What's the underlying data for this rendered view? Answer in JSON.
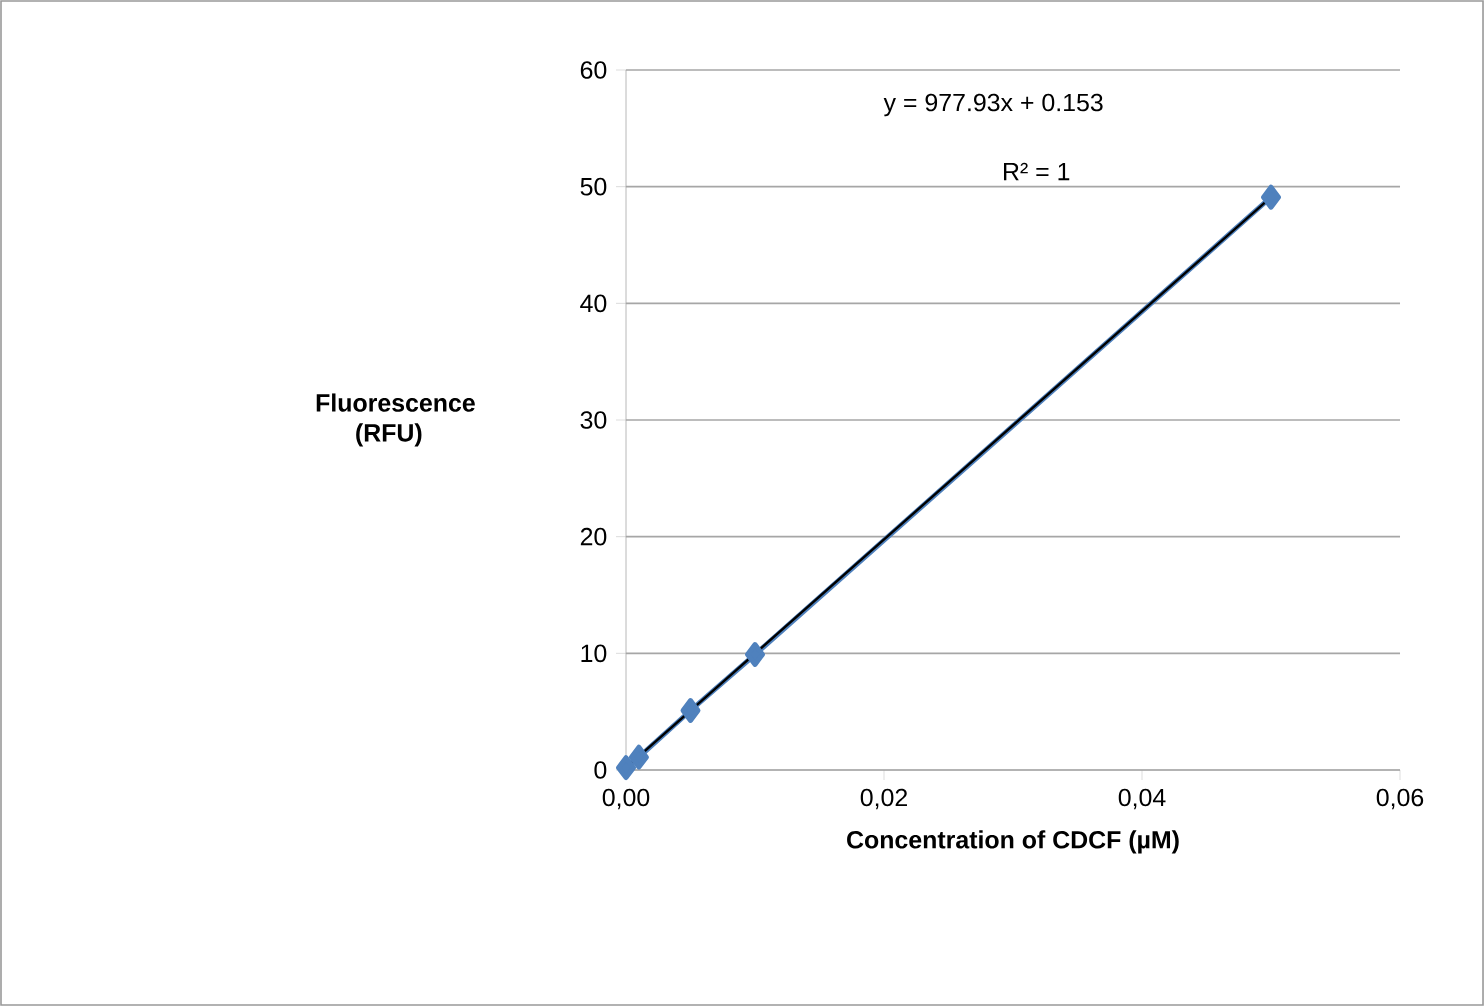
{
  "chart_data": {
    "type": "line",
    "xlabel": "Concentration of CDCF (µM)",
    "ylabel": "Fluorescence (RFU)",
    "annotations": [
      "y = 977.93x + 0.153",
      "R² = 1"
    ],
    "series": [
      {
        "marker": "diamond",
        "color": "#4f81bd",
        "x": [
          0,
          0.001,
          0.005,
          0.01,
          0.05
        ],
        "values": [
          0.2,
          1.1,
          5.1,
          9.9,
          49.1
        ]
      },
      {
        "marker": "none",
        "color": "#000000",
        "x": [
          0,
          0.05
        ],
        "values": [
          0.2,
          49.1
        ]
      }
    ],
    "xlim": [
      0,
      0.06
    ],
    "xticks": [
      {
        "value": 0,
        "label": "0,00"
      },
      {
        "value": 0.02,
        "label": "0,02"
      },
      {
        "value": 0.04,
        "label": "0,04"
      },
      {
        "value": 0.06,
        "label": "0,06"
      }
    ],
    "ylim": [
      0,
      60
    ],
    "yticks": [
      0,
      10,
      20,
      30,
      40,
      50,
      60
    ],
    "grid": "y"
  }
}
